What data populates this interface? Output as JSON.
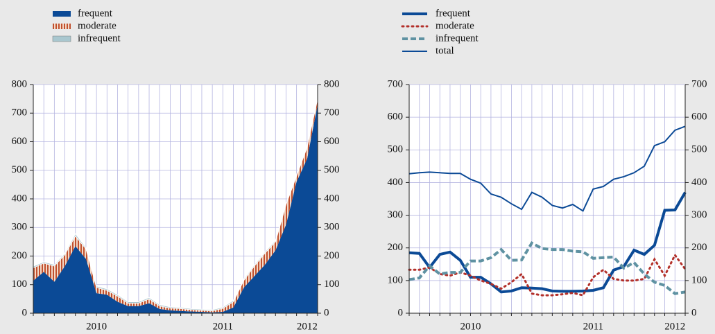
{
  "chart_data": [
    {
      "type": "stacked-area",
      "categories": [
        null,
        null,
        null,
        null,
        null,
        null,
        "2010",
        null,
        null,
        null,
        null,
        null,
        null,
        null,
        null,
        null,
        null,
        null,
        "2011",
        null,
        null,
        null,
        null,
        null,
        null,
        null,
        "2012",
        null
      ],
      "series": [
        {
          "name": "frequent",
          "color": "#0b4a96",
          "values": [
            114,
            145,
            110,
            165,
            235,
            190,
            70,
            65,
            40,
            25,
            25,
            35,
            15,
            10,
            8,
            6,
            5,
            3,
            5,
            20,
            90,
            130,
            170,
            220,
            310,
            460,
            540,
            730
          ]
        },
        {
          "name": "moderate",
          "color": "#c0502e",
          "values": [
            45,
            30,
            55,
            40,
            35,
            35,
            20,
            15,
            20,
            10,
            10,
            15,
            10,
            8,
            8,
            6,
            5,
            5,
            12,
            20,
            25,
            35,
            40,
            30,
            70,
            20,
            40,
            20
          ]
        },
        {
          "name": "infrequent",
          "color": "#a9c7cf",
          "values": [
            5,
            5,
            5,
            5,
            8,
            5,
            5,
            5,
            5,
            5,
            5,
            5,
            5,
            4,
            4,
            4,
            4,
            4,
            4,
            5,
            5,
            5,
            5,
            5,
            5,
            5,
            5,
            5
          ]
        }
      ],
      "ylim": [
        0,
        800
      ],
      "yticks": [
        0,
        100,
        200,
        300,
        400,
        500,
        600,
        700,
        800
      ],
      "grid": true
    },
    {
      "type": "line",
      "categories": [
        null,
        null,
        null,
        null,
        null,
        null,
        "2010",
        null,
        null,
        null,
        null,
        null,
        null,
        null,
        null,
        null,
        null,
        null,
        "2011",
        null,
        null,
        null,
        null,
        null,
        null,
        null,
        "2012",
        null
      ],
      "series": [
        {
          "name": "frequent",
          "color": "#0b4a96",
          "style": "thick",
          "values": [
            185,
            183,
            140,
            180,
            187,
            162,
            110,
            110,
            90,
            65,
            68,
            78,
            77,
            75,
            68,
            67,
            67,
            68,
            70,
            78,
            132,
            143,
            193,
            180,
            208,
            315,
            316,
            370
          ]
        },
        {
          "name": "moderate",
          "color": "#b3302a",
          "style": "dotted",
          "values": [
            133,
            133,
            140,
            120,
            115,
            125,
            115,
            100,
            90,
            75,
            95,
            120,
            60,
            55,
            55,
            58,
            62,
            55,
            110,
            133,
            105,
            100,
            100,
            105,
            165,
            115,
            178,
            135
          ]
        },
        {
          "name": "infrequent",
          "color": "#5f92a2",
          "style": "dashed",
          "values": [
            103,
            108,
            145,
            120,
            125,
            125,
            160,
            160,
            170,
            195,
            162,
            163,
            215,
            198,
            195,
            195,
            190,
            188,
            168,
            170,
            172,
            138,
            155,
            120,
            95,
            85,
            60,
            65
          ]
        },
        {
          "name": "total",
          "color": "#0b4a96",
          "style": "thin",
          "values": [
            427,
            430,
            432,
            430,
            428,
            428,
            410,
            398,
            365,
            355,
            335,
            318,
            370,
            355,
            330,
            322,
            333,
            313,
            380,
            388,
            410,
            418,
            430,
            450,
            513,
            525,
            560,
            572
          ]
        }
      ],
      "ylim": [
        0,
        700
      ],
      "yticks": [
        0,
        100,
        200,
        300,
        400,
        500,
        600,
        700
      ],
      "grid": true
    }
  ]
}
